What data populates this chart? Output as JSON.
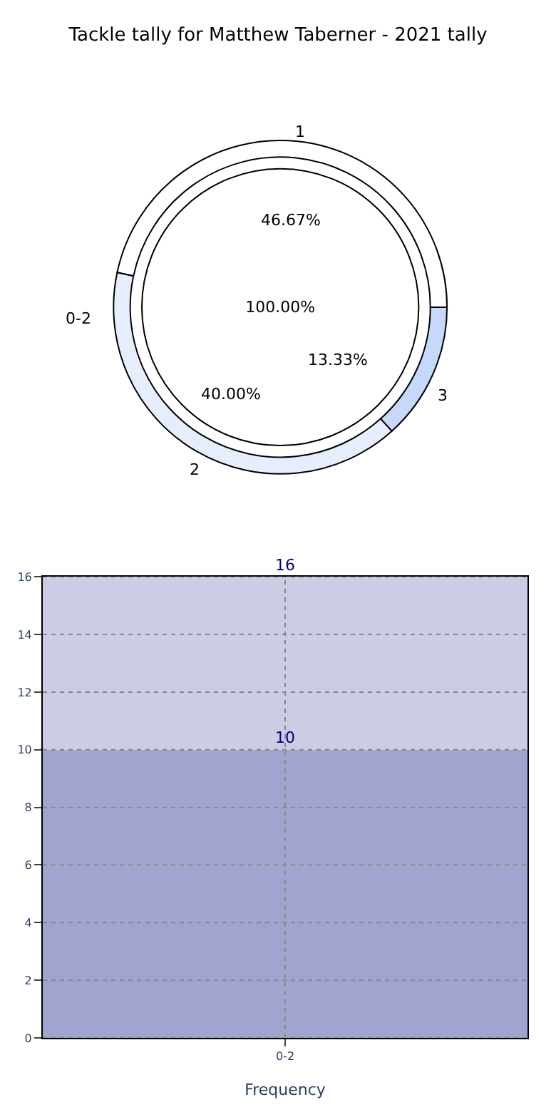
{
  "chart_data": [
    {
      "type": "donut",
      "title": "Tackle tally for Matthew Taberner - 2021 tally",
      "categories": [
        "1",
        "2",
        "3"
      ],
      "values": [
        46.67,
        40.0,
        13.33
      ],
      "colors": [
        "#ffffff",
        "#e6edfd",
        "#c6d9fa"
      ],
      "value_labels": [
        "46.67%",
        "40.00%",
        "13.33%"
      ]
    },
    {
      "type": "pie",
      "categories": [
        "0-2"
      ],
      "values": [
        100
      ],
      "colors": [
        "#ffffff"
      ],
      "value_labels": [
        "100.00%"
      ]
    },
    {
      "type": "bar",
      "categories": [
        "0-2"
      ],
      "xlabel": "Frequency",
      "ylim": [
        0,
        16
      ],
      "yticks": [
        0,
        2,
        4,
        6,
        8,
        10,
        12,
        14,
        16
      ],
      "grid": true,
      "stacked": true,
      "totals": [
        "16"
      ],
      "series": [
        {
          "color": "#a2a4d0",
          "values": [
            10
          ],
          "value_labels": [
            "10"
          ]
        },
        {
          "color": "#ccccE4",
          "values": [
            6
          ],
          "value_labels": [
            null
          ]
        }
      ]
    }
  ]
}
